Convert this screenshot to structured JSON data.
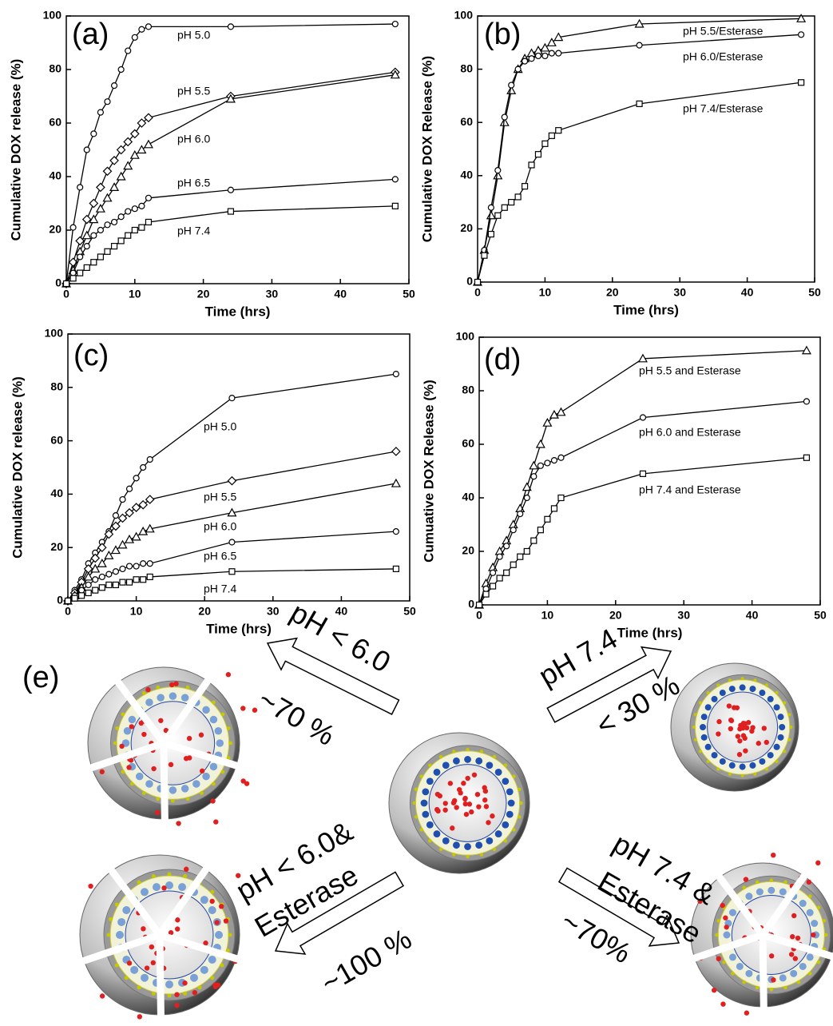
{
  "chart_data": [
    {
      "type": "line",
      "panel": "(a)",
      "xlabel": "Time (hrs)",
      "ylabel": "Cumulative DOX release (%)",
      "x": [
        0,
        1,
        2,
        3,
        4,
        5,
        6,
        7,
        8,
        9,
        10,
        11,
        12,
        24,
        48
      ],
      "xlim": [
        0,
        50
      ],
      "ylim": [
        0,
        100
      ],
      "xticks": [
        0,
        10,
        20,
        30,
        40,
        50
      ],
      "yticks": [
        0,
        20,
        40,
        60,
        80,
        100
      ],
      "series": [
        {
          "name": "pH 5.0",
          "color": "#000000",
          "marker": "circle",
          "values": [
            0,
            21,
            36,
            50,
            56,
            64,
            68,
            74,
            80,
            87,
            92,
            95,
            96,
            96,
            97
          ]
        },
        {
          "name": "pH 5.5",
          "color": "#000000",
          "marker": "diamond",
          "values": [
            0,
            8,
            16,
            24,
            30,
            36,
            42,
            46,
            50,
            53,
            56,
            60,
            62,
            70,
            79
          ]
        },
        {
          "name": "pH 6.0",
          "color": "#000000",
          "marker": "triangle",
          "values": [
            0,
            5,
            12,
            18,
            24,
            28,
            32,
            36,
            40,
            44,
            48,
            50,
            52,
            69,
            78
          ]
        },
        {
          "name": "pH 6.5",
          "color": "#000000",
          "marker": "circle",
          "values": [
            0,
            4,
            10,
            14,
            18,
            20,
            22,
            23,
            25,
            27,
            28,
            29,
            32,
            35,
            39
          ]
        },
        {
          "name": "pH 7.4",
          "color": "#000000",
          "marker": "square",
          "values": [
            0,
            2,
            4,
            6,
            8,
            10,
            12,
            14,
            16,
            18,
            20,
            21,
            23,
            27,
            29
          ]
        }
      ]
    },
    {
      "type": "line",
      "panel": "(b)",
      "xlabel": "Time (hrs)",
      "ylabel": "Cumulative DOX Release (%)",
      "x": [
        0,
        1,
        2,
        3,
        4,
        5,
        6,
        7,
        8,
        9,
        10,
        11,
        12,
        24,
        48
      ],
      "xlim": [
        0,
        50
      ],
      "ylim": [
        0,
        100
      ],
      "xticks": [
        0,
        10,
        20,
        30,
        40,
        50
      ],
      "yticks": [
        0,
        20,
        40,
        60,
        80,
        100
      ],
      "series": [
        {
          "name": "pH 5.5/Esterase",
          "color": "#000000",
          "marker": "triangle",
          "values": [
            0,
            12,
            25,
            40,
            60,
            72,
            80,
            84,
            86,
            87,
            88,
            90,
            92,
            97,
            99
          ]
        },
        {
          "name": "pH 6.0/Esterase",
          "color": "#000000",
          "marker": "circle",
          "values": [
            0,
            12,
            28,
            42,
            62,
            74,
            80,
            83,
            84,
            85,
            85,
            86,
            86,
            89,
            93
          ]
        },
        {
          "name": "pH 7.4/Esterase",
          "color": "#000000",
          "marker": "square",
          "values": [
            0,
            10,
            18,
            25,
            28,
            30,
            32,
            36,
            44,
            48,
            52,
            55,
            57,
            67,
            75
          ]
        }
      ]
    },
    {
      "type": "line",
      "panel": "(c)",
      "xlabel": "Time (hrs)",
      "ylabel": "Cumulative DOX release (%)",
      "x": [
        0,
        1,
        2,
        3,
        4,
        5,
        6,
        7,
        8,
        9,
        10,
        11,
        12,
        24,
        48
      ],
      "xlim": [
        0,
        50
      ],
      "ylim": [
        0,
        100
      ],
      "xticks": [
        0,
        10,
        20,
        30,
        40,
        50
      ],
      "yticks": [
        0,
        20,
        40,
        60,
        80,
        100
      ],
      "series": [
        {
          "name": "pH 5.0",
          "color": "#000000",
          "marker": "circle",
          "values": [
            0,
            4,
            8,
            14,
            18,
            22,
            26,
            32,
            38,
            42,
            46,
            50,
            53,
            76,
            85
          ]
        },
        {
          "name": "pH 5.5",
          "color": "#000000",
          "marker": "diamond",
          "values": [
            0,
            3,
            7,
            12,
            16,
            20,
            25,
            28,
            31,
            33,
            35,
            36,
            38,
            45,
            56
          ]
        },
        {
          "name": "pH 6.0",
          "color": "#000000",
          "marker": "triangle",
          "values": [
            0,
            2,
            5,
            9,
            12,
            14,
            17,
            19,
            21,
            23,
            24,
            26,
            27,
            33,
            44
          ]
        },
        {
          "name": "pH 6.5",
          "color": "#000000",
          "marker": "circle",
          "values": [
            0,
            2,
            4,
            6,
            8,
            9,
            10,
            11,
            12,
            13,
            13,
            14,
            14,
            22,
            26
          ]
        },
        {
          "name": "pH 7.4",
          "color": "#000000",
          "marker": "square",
          "values": [
            0,
            1,
            2,
            3,
            4,
            5,
            6,
            6,
            7,
            7,
            8,
            8,
            9,
            11,
            12
          ]
        }
      ]
    },
    {
      "type": "line",
      "panel": "(d)",
      "xlabel": "Time (hrs)",
      "ylabel": "Cumuative DOX Release (%)",
      "x": [
        0,
        1,
        2,
        3,
        4,
        5,
        6,
        7,
        8,
        9,
        10,
        11,
        12,
        24,
        48
      ],
      "xlim": [
        0,
        50
      ],
      "ylim": [
        0,
        100
      ],
      "xticks": [
        0,
        10,
        20,
        30,
        40,
        50
      ],
      "yticks": [
        0,
        20,
        40,
        60,
        80,
        100
      ],
      "series": [
        {
          "name": "pH 5.5 and Esterase",
          "color": "#000000",
          "marker": "triangle",
          "values": [
            0,
            8,
            14,
            20,
            24,
            30,
            36,
            44,
            52,
            60,
            68,
            71,
            72,
            92,
            95
          ]
        },
        {
          "name": "pH 6.0 and Esterase",
          "color": "#000000",
          "marker": "circle",
          "values": [
            0,
            6,
            12,
            18,
            22,
            28,
            34,
            40,
            48,
            52,
            53,
            54,
            55,
            70,
            76
          ]
        },
        {
          "name": "pH 7.4 and Esterase",
          "color": "#000000",
          "marker": "square",
          "values": [
            0,
            4,
            7,
            10,
            12,
            15,
            18,
            20,
            24,
            28,
            32,
            36,
            40,
            49,
            55
          ]
        }
      ]
    }
  ],
  "schematic": {
    "panel": "(e)",
    "arrows": [
      {
        "condition": "pH < 6.0",
        "release": "~70 %"
      },
      {
        "condition": "pH 7.4",
        "release": "< 30 %"
      },
      {
        "condition": "pH < 6.0&",
        "condition2": "Esterase",
        "release": "~100 %"
      },
      {
        "condition": "pH 7.4 &",
        "condition2": "Esterase",
        "release": "~70%"
      }
    ]
  }
}
